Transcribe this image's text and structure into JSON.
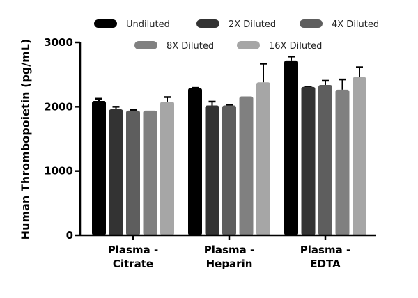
{
  "chart_data": {
    "type": "bar",
    "title": "",
    "xlabel": "",
    "ylabel": "Human Thrombopoietin (pg/mL)",
    "ylim": [
      0,
      3000
    ],
    "yticks": [
      0,
      1000,
      2000,
      3000
    ],
    "grid": false,
    "legend_placement": "top",
    "categories": [
      [
        "Plasma -",
        "Citrate"
      ],
      [
        "Plasma -",
        "Heparin"
      ],
      [
        "Plasma -",
        "EDTA"
      ]
    ],
    "series": [
      {
        "name": "Undiluted",
        "color": "#000000",
        "values": [
          2090,
          2290,
          2720
        ],
        "errors": [
          35,
          5,
          60
        ]
      },
      {
        "name": "2X Diluted",
        "color": "#333333",
        "values": [
          1960,
          2020,
          2310
        ],
        "errors": [
          40,
          60,
          5
        ]
      },
      {
        "name": "4X Diluted",
        "color": "#5e5e5e",
        "values": [
          1940,
          2020,
          2340
        ],
        "errors": [
          10,
          10,
          65
        ]
      },
      {
        "name": "8X Diluted",
        "color": "#808080",
        "values": [
          1940,
          2160,
          2265
        ],
        "errors": [
          0,
          0,
          160
        ]
      },
      {
        "name": "16X Diluted",
        "color": "#a6a6a6",
        "values": [
          2080,
          2380,
          2460
        ],
        "errors": [
          70,
          290,
          155
        ]
      }
    ]
  }
}
